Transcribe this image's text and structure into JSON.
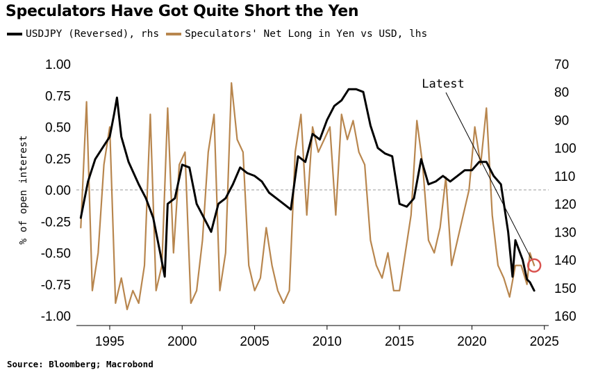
{
  "title": "Speculators Have Got Quite Short the Yen",
  "legend": [
    {
      "label": "USDJPY (Reversed), rhs",
      "color": "#000000"
    },
    {
      "label": "Speculators' Net Long in Yen vs USD, lhs",
      "color": "#b8864e"
    }
  ],
  "source": "Source: Bloomberg; Macrobond",
  "chart_data": {
    "type": "line",
    "title": "Speculators Have Got Quite Short the Yen",
    "ylabel_left": "% of open interest",
    "ylim_left": [
      -1.0,
      1.0
    ],
    "yticks_left": [
      "1.00",
      "0.75",
      "0.50",
      "0.25",
      "0.00",
      "-0.25",
      "-0.50",
      "-0.75",
      "-1.00"
    ],
    "ylim_right": [
      70,
      160
    ],
    "right_axis_reversed": true,
    "yticks_right": [
      "70",
      "80",
      "90",
      "100",
      "110",
      "120",
      "130",
      "140",
      "150",
      "160"
    ],
    "xlim": [
      1992.7,
      2025.3
    ],
    "xticks": [
      "1995",
      "2000",
      "2005",
      "2010",
      "2015",
      "2020",
      "2025"
    ],
    "zero_line": "dashed",
    "annotation": {
      "text": "Latest",
      "x": 2024.3,
      "y_right": 142
    },
    "series": [
      {
        "name": "USDJPY (Reversed), rhs",
        "axis": "right",
        "color": "#000000",
        "x": [
          1993.0,
          1993.5,
          1994.0,
          1994.5,
          1995.0,
          1995.3,
          1995.5,
          1995.8,
          1996.3,
          1997.0,
          1997.5,
          1998.0,
          1998.5,
          1998.8,
          1999.0,
          1999.5,
          2000.0,
          2000.5,
          2001.0,
          2001.5,
          2002.0,
          2002.5,
          2003.0,
          2003.5,
          2004.0,
          2004.5,
          2005.0,
          2005.5,
          2006.0,
          2006.5,
          2007.0,
          2007.5,
          2008.0,
          2008.5,
          2009.0,
          2009.5,
          2010.0,
          2010.5,
          2011.0,
          2011.5,
          2012.0,
          2012.5,
          2013.0,
          2013.5,
          2014.0,
          2014.5,
          2015.0,
          2015.5,
          2016.0,
          2016.5,
          2017.0,
          2017.5,
          2018.0,
          2018.5,
          2019.0,
          2019.5,
          2020.0,
          2020.5,
          2021.0,
          2021.5,
          2022.0,
          2022.5,
          2022.8,
          2023.0,
          2023.5,
          2023.8,
          2024.0,
          2024.3
        ],
        "values": [
          125,
          112,
          104,
          100,
          96,
          88,
          82,
          96,
          105,
          113,
          118,
          125,
          138,
          146,
          120,
          118,
          106,
          107,
          120,
          125,
          130,
          120,
          118,
          113,
          107,
          109,
          110,
          112,
          116,
          118,
          120,
          122,
          103,
          105,
          95,
          97,
          90,
          85,
          83,
          79,
          79,
          80,
          92,
          100,
          102,
          103,
          120,
          121,
          118,
          104,
          113,
          112,
          110,
          112,
          110,
          108,
          108,
          105,
          105,
          110,
          113,
          130,
          146,
          133,
          140,
          147,
          148,
          151
        ]
      },
      {
        "name": "Speculators' Net Long in Yen vs USD, lhs",
        "axis": "left",
        "color": "#b8864e",
        "x": [
          1993.0,
          1993.4,
          1993.8,
          1994.2,
          1994.6,
          1995.0,
          1995.4,
          1995.8,
          1996.2,
          1996.6,
          1997.0,
          1997.4,
          1997.8,
          1998.2,
          1998.6,
          1999.0,
          1999.4,
          1999.8,
          2000.2,
          2000.6,
          2001.0,
          2001.4,
          2001.8,
          2002.2,
          2002.6,
          2003.0,
          2003.4,
          2003.8,
          2004.2,
          2004.6,
          2005.0,
          2005.4,
          2005.8,
          2006.2,
          2006.6,
          2007.0,
          2007.4,
          2007.8,
          2008.2,
          2008.6,
          2009.0,
          2009.4,
          2009.8,
          2010.2,
          2010.6,
          2011.0,
          2011.4,
          2011.8,
          2012.2,
          2012.6,
          2013.0,
          2013.4,
          2013.8,
          2014.2,
          2014.6,
          2015.0,
          2015.4,
          2015.8,
          2016.2,
          2016.6,
          2017.0,
          2017.4,
          2017.8,
          2018.2,
          2018.6,
          2019.0,
          2019.4,
          2019.8,
          2020.2,
          2020.6,
          2021.0,
          2021.4,
          2021.8,
          2022.2,
          2022.6,
          2023.0,
          2023.4,
          2023.8,
          2024.0,
          2024.3
        ],
        "values": [
          -0.3,
          0.7,
          -0.8,
          -0.5,
          0.2,
          0.5,
          -0.9,
          -0.7,
          -0.95,
          -0.8,
          -0.9,
          -0.6,
          0.6,
          -0.8,
          -0.6,
          0.65,
          -0.5,
          0.2,
          0.3,
          -0.9,
          -0.8,
          -0.4,
          0.3,
          0.6,
          -0.8,
          -0.5,
          0.85,
          0.4,
          0.3,
          -0.6,
          -0.8,
          -0.7,
          -0.3,
          -0.6,
          -0.8,
          -0.9,
          -0.8,
          0.3,
          0.6,
          -0.2,
          0.5,
          0.3,
          0.4,
          0.5,
          -0.2,
          0.6,
          0.4,
          0.55,
          0.3,
          0.2,
          -0.4,
          -0.6,
          -0.7,
          -0.5,
          -0.8,
          -0.8,
          -0.5,
          -0.2,
          0.55,
          0.2,
          -0.4,
          -0.5,
          -0.3,
          0.1,
          -0.6,
          -0.4,
          -0.2,
          0.0,
          0.5,
          0.2,
          0.65,
          -0.2,
          -0.6,
          -0.7,
          -0.85,
          -0.6,
          -0.6,
          -0.75,
          -0.5,
          -0.6
        ]
      }
    ]
  }
}
